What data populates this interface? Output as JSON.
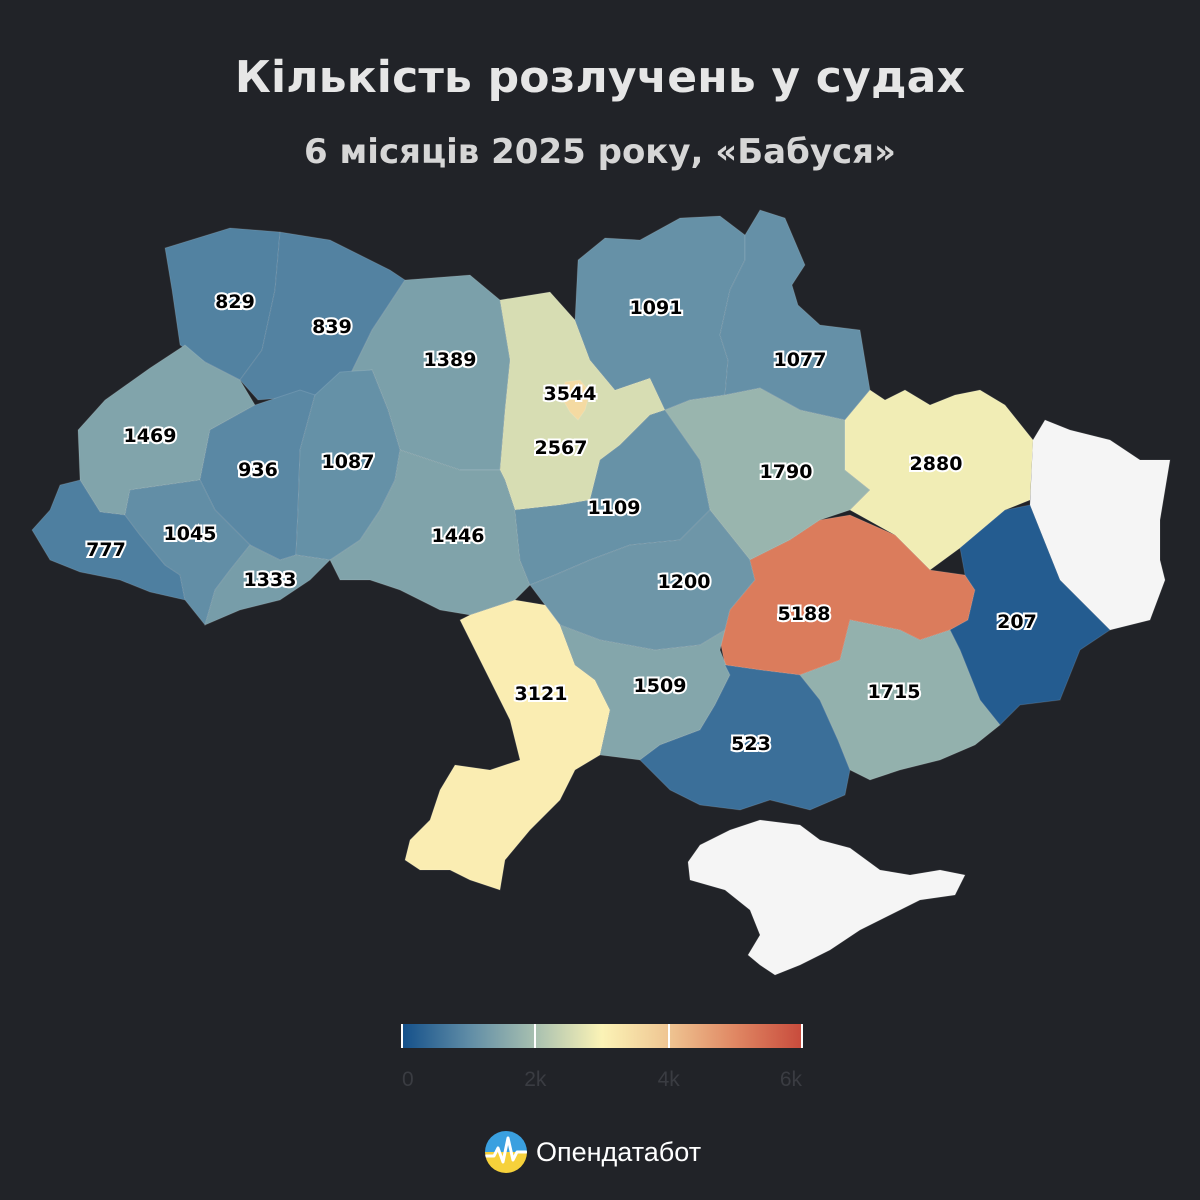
{
  "title": "Кількість розлучень у судах",
  "subtitle": "6 місяців 2025 року, «Бабуся»",
  "legend": {
    "min": 0,
    "max": 6000,
    "ticks": [
      {
        "value": 0,
        "label": "0"
      },
      {
        "value": 2000,
        "label": "2k"
      },
      {
        "value": 4000,
        "label": "4k"
      },
      {
        "value": 6000,
        "label": "6k"
      }
    ],
    "colors": [
      "#14508a",
      "#5f8ca6",
      "#a8c0b0",
      "#fbf3b6",
      "#efc592",
      "#e08763",
      "#c84b3c"
    ]
  },
  "no_data_color": "#f5f5f5",
  "brand": {
    "name": "Опендатабот"
  },
  "regions": [
    {
      "id": "volyn",
      "value": 829,
      "label": "829"
    },
    {
      "id": "rivne",
      "value": 839,
      "label": "839"
    },
    {
      "id": "zhytomyr",
      "value": 1389,
      "label": "1389"
    },
    {
      "id": "kyiv-oblast",
      "value": 2567,
      "label": "2567"
    },
    {
      "id": "kyiv-city",
      "value": 3544,
      "label": "3544"
    },
    {
      "id": "chernihiv",
      "value": 1091,
      "label": "1091"
    },
    {
      "id": "sumy",
      "value": 1077,
      "label": "1077"
    },
    {
      "id": "lviv",
      "value": 1469,
      "label": "1469"
    },
    {
      "id": "ternopil",
      "value": 936,
      "label": "936"
    },
    {
      "id": "khmelnytskyi",
      "value": 1087,
      "label": "1087"
    },
    {
      "id": "vinnytsia",
      "value": 1446,
      "label": "1446"
    },
    {
      "id": "cherkasy",
      "value": 1109,
      "label": "1109"
    },
    {
      "id": "poltava",
      "value": 1790,
      "label": "1790"
    },
    {
      "id": "kharkiv",
      "value": 2880,
      "label": "2880"
    },
    {
      "id": "luhansk",
      "value": null,
      "label": ""
    },
    {
      "id": "zakarpattia",
      "value": 777,
      "label": "777"
    },
    {
      "id": "ivano-frankivsk",
      "value": 1045,
      "label": "1045"
    },
    {
      "id": "chernivtsi",
      "value": 1333,
      "label": "1333"
    },
    {
      "id": "kirovohrad",
      "value": 1200,
      "label": "1200"
    },
    {
      "id": "dnipropetrovsk",
      "value": 5188,
      "label": "5188"
    },
    {
      "id": "donetsk",
      "value": 207,
      "label": "207"
    },
    {
      "id": "odesa",
      "value": 3121,
      "label": "3121"
    },
    {
      "id": "mykolaiv",
      "value": 1509,
      "label": "1509"
    },
    {
      "id": "kherson",
      "value": 523,
      "label": "523"
    },
    {
      "id": "zaporizhzhia",
      "value": 1715,
      "label": "1715"
    },
    {
      "id": "crimea",
      "value": null,
      "label": ""
    }
  ]
}
